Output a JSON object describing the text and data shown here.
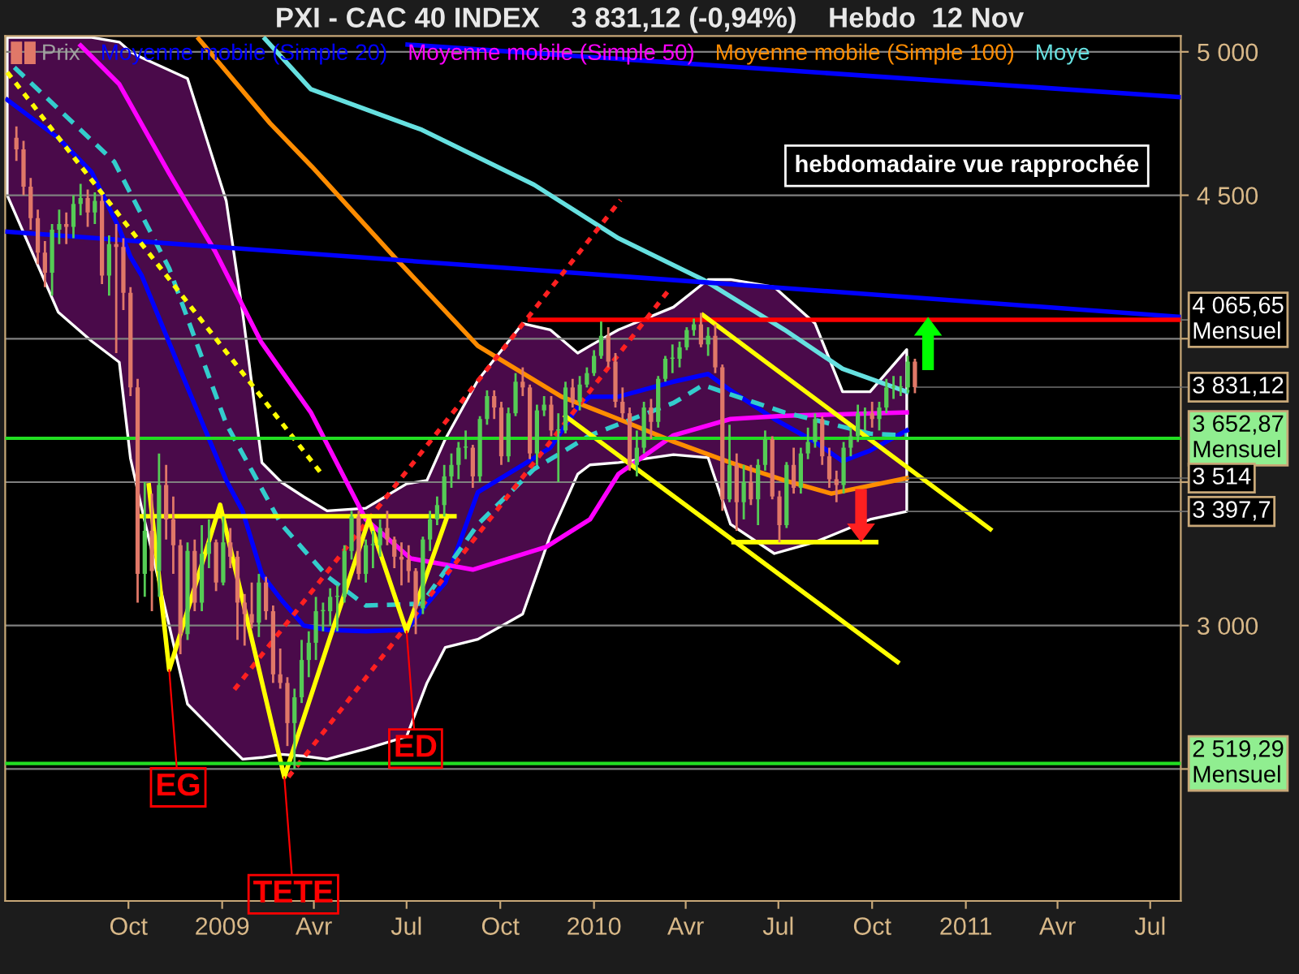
{
  "chart_data": {
    "type": "candlestick",
    "title": "PXI - CAC 40 INDEX    3 831,12 (-0,94%)    Hebdo  12 Nov",
    "xlim": [
      "2008-06-02",
      "2011-07-31"
    ],
    "xticks": [
      {
        "value": "2008-10-01",
        "label": "Oct"
      },
      {
        "value": "2009-01-01",
        "label": "2009"
      },
      {
        "value": "2009-04-01",
        "label": "Avr"
      },
      {
        "value": "2009-07-01",
        "label": "Jul"
      },
      {
        "value": "2009-10-01",
        "label": "Oct"
      },
      {
        "value": "2010-01-01",
        "label": "2010"
      },
      {
        "value": "2010-04-01",
        "label": "Avr"
      },
      {
        "value": "2010-07-01",
        "label": "Jul"
      },
      {
        "value": "2010-10-01",
        "label": "Oct"
      },
      {
        "value": "2011-01-01",
        "label": "2011"
      },
      {
        "value": "2011-04-01",
        "label": "Avr"
      },
      {
        "value": "2011-07-01",
        "label": "Jul"
      }
    ],
    "ylim": [
      2040,
      5055
    ],
    "yticks": [
      {
        "value": 2500,
        "label": null
      },
      {
        "value": 3000,
        "label": "3 000"
      },
      {
        "value": 3500,
        "label": null
      },
      {
        "value": 4000,
        "label": null
      },
      {
        "value": 4500,
        "label": "4 500"
      },
      {
        "value": 5000,
        "label": "5 000"
      }
    ],
    "grid": "y",
    "legend": "top left",
    "series": [
      {
        "type": "line",
        "name": "Moyenne mobile (Simple 20)",
        "color": "#0000ff",
        "x": [
          "2008-06-04",
          "2008-07-24",
          "2008-08-26",
          "2008-09-22",
          "2008-10-03",
          "2008-10-14",
          "2008-11-28",
          "2009-01-05",
          "2009-01-21",
          "2009-02-09",
          "2009-02-28",
          "2009-03-22",
          "2009-04-14",
          "2009-05-22",
          "2009-07-01",
          "2009-07-21",
          "2009-08-08",
          "2009-09-09",
          "2009-10-23",
          "2009-11-19",
          "2009-12-16",
          "2009-12-28",
          "2010-01-25",
          "2010-03-20",
          "2010-04-23",
          "2010-05-15",
          "2010-06-27",
          "2010-08-06",
          "2010-09-02",
          "2010-09-29",
          "2010-11-04"
        ],
        "values": [
          4833,
          4700,
          4580,
          4384,
          4285,
          4220,
          3830,
          3506,
          3400,
          3178,
          3090,
          3000,
          2985,
          2980,
          2985,
          3076,
          3150,
          3465,
          3560,
          3620,
          3760,
          3798,
          3798,
          3850,
          3877,
          3820,
          3720,
          3640,
          3573,
          3610,
          3680
        ],
        "upper": [
          5050,
          5050,
          5050,
          5034,
          5000,
          4980,
          4907,
          4480,
          4093,
          3568,
          3500,
          3449,
          3400,
          3409,
          3494,
          3506,
          3650,
          3855,
          4053,
          4031,
          3950,
          3975,
          4031,
          4110,
          4206,
          4206,
          4180,
          4053,
          3815,
          3815,
          3962
        ],
        "lower": [
          4500,
          4093,
          3991,
          3918,
          3582,
          3409,
          2726,
          2590,
          2534,
          2540,
          2551,
          2545,
          2534,
          2570,
          2613,
          2800,
          2924,
          2952,
          3040,
          3313,
          3528,
          3560,
          3568,
          3596,
          3585,
          3353,
          3251,
          3291,
          3330,
          3370,
          3397.7
        ]
      },
      {
        "type": "line",
        "name": "Moyenne mobile (Simple 50)",
        "color": "#ff00ff",
        "x": [
          "2008-08-15",
          "2008-09-22",
          "2008-11-10",
          "2008-12-25",
          "2009-02-08",
          "2009-03-29",
          "2009-05-22",
          "2009-07-05",
          "2009-09-04",
          "2009-11-15",
          "2009-12-28",
          "2010-01-25",
          "2010-03-20",
          "2010-05-15",
          "2010-07-07",
          "2010-11-04"
        ],
        "values": [
          5022,
          4887,
          4576,
          4305,
          3990,
          3743,
          3370,
          3234,
          3195,
          3274,
          3370,
          3528,
          3663,
          3720,
          3731,
          3743
        ]
      },
      {
        "type": "line",
        "name": "Moyenne mobile (Simple 100)",
        "color": "#ff8c00",
        "x": [
          "2008-12-09",
          "2009-02-17",
          "2009-03-30",
          "2009-06-19",
          "2009-09-09",
          "2009-11-30",
          "2010-01-25",
          "2010-03-20",
          "2010-05-15",
          "2010-07-07",
          "2010-08-22",
          "2010-11-04"
        ],
        "values": [
          5045,
          4751,
          4600,
          4285,
          3975,
          3798,
          3720,
          3641,
          3568,
          3506,
          3460,
          3514
        ]
      },
      {
        "type": "line",
        "name": "Moye",
        "color": "#66e0e0",
        "x": [
          "2009-02-12",
          "2009-03-29",
          "2009-07-16",
          "2009-11-03",
          "2010-01-25",
          "2010-04-18",
          "2010-07-07",
          "2010-09-02",
          "2010-11-04"
        ],
        "values": [
          5045,
          4870,
          4728,
          4537,
          4350,
          4206,
          4031,
          3895,
          3815
        ]
      },
      {
        "type": "line",
        "color": "#33cccc",
        "line_style": "dashed",
        "x": [
          "2008-06-11",
          "2008-09-17",
          "2008-11-10",
          "2009-01-05",
          "2009-02-28",
          "2009-04-14",
          "2009-05-22",
          "2009-07-16",
          "2009-09-09",
          "2009-11-03",
          "2009-12-28",
          "2010-03-20",
          "2010-04-18",
          "2010-07-07",
          "2010-09-29",
          "2010-11-04"
        ],
        "values": [
          4946,
          4617,
          4245,
          3703,
          3353,
          3172,
          3070,
          3076,
          3353,
          3545,
          3663,
          3776,
          3838,
          3743,
          3669,
          3663
        ]
      },
      {
        "type": "line",
        "color": "#0000ff",
        "x": [
          "2008-06-04",
          "2011-07-31"
        ],
        "values": [
          4373,
          4076
        ]
      },
      {
        "type": "line",
        "color": "#0000ff",
        "x": [
          "2009-07-02",
          "2011-07-31"
        ],
        "values": [
          5025,
          4842
        ]
      },
      {
        "type": "line",
        "color": "#ff0000",
        "x": [
          "2009-10-30",
          "2011-07-31"
        ],
        "values": [
          4065.65,
          4065.65
        ]
      },
      {
        "type": "line",
        "color": "#ffff00",
        "line_style": "dotted",
        "x": [
          "2008-06-04",
          "2009-04-09"
        ],
        "values": [
          4929,
          3527
        ]
      },
      {
        "type": "line",
        "color": "#ff2020",
        "line_style": "dotted",
        "x": [
          "2009-01-13",
          "2010-01-27"
        ],
        "values": [
          2777,
          4483
        ]
      },
      {
        "type": "line",
        "color": "#ff2020",
        "line_style": "dotted",
        "x": [
          "2009-03-07",
          "2010-03-16"
        ],
        "values": [
          2472,
          4172
        ]
      },
      {
        "type": "line",
        "color": "#ffff00",
        "x": [
          "2010-04-18",
          "2011-01-25"
        ],
        "values": [
          4082,
          3336
        ]
      },
      {
        "type": "line",
        "color": "#ffff00",
        "x": [
          "2009-12-04",
          "2010-10-26"
        ],
        "values": [
          3730,
          2873
        ]
      },
      {
        "type": "line",
        "color": "#ffff00",
        "x": [
          "2008-10-21",
          "2008-11-10",
          "2008-12-30",
          "2009-03-03",
          "2009-05-25",
          "2009-07-01",
          "2009-08-10"
        ],
        "values": [
          3489,
          2845,
          3421,
          2472,
          3370,
          2980,
          3381
        ]
      },
      {
        "type": "line",
        "color": "#ffff00",
        "x": [
          "2008-10-13",
          "2009-08-17"
        ],
        "values": [
          3381,
          3381
        ]
      },
      {
        "type": "line",
        "color": "#ffff00",
        "x": [
          "2010-05-18",
          "2010-10-05"
        ],
        "values": [
          3291,
          3291
        ]
      },
      {
        "name": "Prix",
        "color": "#a0a0a0",
        "colors": [
          "#e07868",
          "#e07868",
          "#e07868",
          "#e07868",
          "#e07868",
          "#55cc55",
          "#55cc55",
          "#e07868",
          "#55cc55",
          "#55cc55",
          "#e07868",
          "#55cc55",
          "#e07868",
          "#55cc55",
          "#e07868",
          "#e07868",
          "#e07868",
          "#e07868",
          "#55cc55",
          "#e07868",
          "#55cc55",
          "#e07868",
          "#e07868",
          "#e07868",
          "#55cc55",
          "#e07868",
          "#55cc55",
          "#55cc55",
          "#e07868",
          "#55cc55",
          "#e07868",
          "#e07868",
          "#e07868",
          "#e07868",
          "#55cc55",
          "#e07868",
          "#e07868",
          "#e07868",
          "#e07868",
          "#55cc55",
          "#55cc55",
          "#55cc55",
          "#55cc55",
          "#55cc55",
          "#55cc55",
          "#55cc55",
          "#55cc55",
          "#55cc55",
          "#e07868",
          "#55cc55",
          "#55cc55",
          "#55cc55",
          "#e07868",
          "#e07868",
          "#e07868",
          "#e07868",
          "#e07868",
          "#55cc55",
          "#55cc55",
          "#55cc55",
          "#55cc55",
          "#55cc55",
          "#55cc55",
          "#55cc55",
          "#e07868",
          "#55cc55",
          "#55cc55",
          "#e07868",
          "#e07868",
          "#55cc55",
          "#55cc55",
          "#e07868",
          "#e07868",
          "#55cc55",
          "#55cc55",
          "#e07868",
          "#55cc55",
          "#55cc55",
          "#e07868",
          "#55cc55",
          "#55cc55",
          "#55cc55",
          "#55cc55",
          "#e07868",
          "#e07868",
          "#e07868",
          "#e07868",
          "#55cc55",
          "#55cc55",
          "#e07868",
          "#55cc55",
          "#55cc55",
          "#55cc55",
          "#55cc55",
          "#55cc55",
          "#55cc55",
          "#e07868",
          "#55cc55",
          "#e07868",
          "#e07868",
          "#55cc55",
          "#e07868",
          "#55cc55",
          "#e07868",
          "#55cc55",
          "#55cc55",
          "#e07868",
          "#e07868",
          "#55cc55",
          "#e07868",
          "#55cc55",
          "#55cc55",
          "#55cc55",
          "#e07868",
          "#e07868",
          "#e07868",
          "#55cc55",
          "#55cc55",
          "#55cc55",
          "#55cc55",
          "#e07868",
          "#55cc55",
          "#55cc55",
          "#55cc55",
          "#55cc55",
          "#55cc55",
          "#e07868"
        ],
        "x": [
          "2008-06-13",
          "2008-06-20",
          "2008-06-27",
          "2008-07-04",
          "2008-07-11",
          "2008-07-18",
          "2008-07-25",
          "2008-08-01",
          "2008-08-08",
          "2008-08-15",
          "2008-08-22",
          "2008-08-29",
          "2008-09-05",
          "2008-09-12",
          "2008-09-19",
          "2008-09-26",
          "2008-10-03",
          "2008-10-10",
          "2008-10-17",
          "2008-10-24",
          "2008-10-31",
          "2008-11-07",
          "2008-11-14",
          "2008-11-21",
          "2008-11-28",
          "2008-12-05",
          "2008-12-12",
          "2008-12-19",
          "2008-12-26",
          "2009-01-02",
          "2009-01-09",
          "2009-01-16",
          "2009-01-23",
          "2009-01-30",
          "2009-02-06",
          "2009-02-13",
          "2009-02-20",
          "2009-02-27",
          "2009-03-06",
          "2009-03-13",
          "2009-03-20",
          "2009-03-27",
          "2009-04-03",
          "2009-04-10",
          "2009-04-17",
          "2009-04-24",
          "2009-05-01",
          "2009-05-08",
          "2009-05-15",
          "2009-05-22",
          "2009-05-29",
          "2009-06-05",
          "2009-06-12",
          "2009-06-19",
          "2009-06-26",
          "2009-07-03",
          "2009-07-10",
          "2009-07-17",
          "2009-07-24",
          "2009-07-31",
          "2009-08-07",
          "2009-08-14",
          "2009-08-21",
          "2009-08-28",
          "2009-09-04",
          "2009-09-11",
          "2009-09-18",
          "2009-09-25",
          "2009-10-02",
          "2009-10-09",
          "2009-10-16",
          "2009-10-23",
          "2009-10-30",
          "2009-11-06",
          "2009-11-13",
          "2009-11-20",
          "2009-11-27",
          "2009-12-04",
          "2009-12-11",
          "2009-12-18",
          "2009-12-25",
          "2010-01-01",
          "2010-01-08",
          "2010-01-15",
          "2010-01-22",
          "2010-01-29",
          "2010-02-05",
          "2010-02-12",
          "2010-02-19",
          "2010-02-26",
          "2010-03-05",
          "2010-03-12",
          "2010-03-19",
          "2010-03-26",
          "2010-04-02",
          "2010-04-09",
          "2010-04-16",
          "2010-04-23",
          "2010-04-30",
          "2010-05-07",
          "2010-05-14",
          "2010-05-21",
          "2010-05-28",
          "2010-06-04",
          "2010-06-11",
          "2010-06-18",
          "2010-06-25",
          "2010-07-02",
          "2010-07-09",
          "2010-07-16",
          "2010-07-23",
          "2010-07-30",
          "2010-08-06",
          "2010-08-13",
          "2010-08-20",
          "2010-08-27",
          "2010-09-03",
          "2010-09-10",
          "2010-09-17",
          "2010-09-24",
          "2010-10-01",
          "2010-10-08",
          "2010-10-15",
          "2010-10-22",
          "2010-10-29",
          "2010-11-05",
          "2010-11-12"
        ],
        "ohlc": [
          [
            4700,
            4740,
            4620,
            4660
          ],
          [
            4660,
            4690,
            4500,
            4530
          ],
          [
            4530,
            4560,
            4380,
            4420
          ],
          [
            4420,
            4450,
            4260,
            4300
          ],
          [
            4300,
            4340,
            4180,
            4230
          ],
          [
            4230,
            4400,
            4150,
            4380
          ],
          [
            4380,
            4450,
            4330,
            4400
          ],
          [
            4400,
            4440,
            4330,
            4390
          ],
          [
            4390,
            4500,
            4350,
            4470
          ],
          [
            4470,
            4540,
            4430,
            4490
          ],
          [
            4490,
            4520,
            4390,
            4440
          ],
          [
            4440,
            4510,
            4400,
            4480
          ],
          [
            4480,
            4500,
            4190,
            4220
          ],
          [
            4220,
            4360,
            4150,
            4330
          ],
          [
            4330,
            4400,
            3950,
            4320
          ],
          [
            4320,
            4350,
            4100,
            4160
          ],
          [
            4160,
            4180,
            3800,
            3830
          ],
          [
            3830,
            3860,
            3080,
            3180
          ],
          [
            3180,
            3500,
            3100,
            3330
          ],
          [
            3330,
            3460,
            3050,
            3190
          ],
          [
            3190,
            3600,
            3100,
            3490
          ],
          [
            3490,
            3560,
            3300,
            3370
          ],
          [
            3370,
            3450,
            3180,
            3280
          ],
          [
            3280,
            3300,
            2900,
            2970
          ],
          [
            2970,
            3290,
            2950,
            3260
          ],
          [
            3260,
            3300,
            3050,
            3080
          ],
          [
            3080,
            3350,
            3050,
            3250
          ],
          [
            3250,
            3370,
            3200,
            3290
          ],
          [
            3290,
            3300,
            3120,
            3150
          ],
          [
            3150,
            3380,
            3140,
            3290
          ],
          [
            3290,
            3340,
            3200,
            3240
          ],
          [
            3240,
            3260,
            2950,
            3080
          ],
          [
            3080,
            3110,
            2930,
            3040
          ],
          [
            3040,
            3150,
            2990,
            3010
          ],
          [
            3010,
            3180,
            2960,
            3150
          ],
          [
            3150,
            3170,
            3020,
            3050
          ],
          [
            3050,
            3070,
            2800,
            2830
          ],
          [
            2830,
            2920,
            2780,
            2800
          ],
          [
            2800,
            2820,
            2580,
            2660
          ],
          [
            2660,
            2780,
            2500,
            2750
          ],
          [
            2750,
            2950,
            2730,
            2880
          ],
          [
            2880,
            2980,
            2820,
            2940
          ],
          [
            2940,
            3100,
            2880,
            3050
          ],
          [
            3050,
            3080,
            2980,
            3050
          ],
          [
            3050,
            3130,
            3000,
            3100
          ],
          [
            3100,
            3140,
            2980,
            3100
          ],
          [
            3100,
            3280,
            3080,
            3260
          ],
          [
            3260,
            3400,
            3230,
            3380
          ],
          [
            3380,
            3400,
            3160,
            3180
          ],
          [
            3180,
            3300,
            3150,
            3280
          ],
          [
            3280,
            3330,
            3200,
            3280
          ],
          [
            3280,
            3370,
            3240,
            3340
          ],
          [
            3340,
            3400,
            3280,
            3300
          ],
          [
            3300,
            3310,
            3200,
            3240
          ],
          [
            3240,
            3290,
            3140,
            3230
          ],
          [
            3230,
            3280,
            3150,
            3190
          ],
          [
            3190,
            3200,
            2970,
            3060
          ],
          [
            3060,
            3310,
            3040,
            3300
          ],
          [
            3300,
            3400,
            3260,
            3370
          ],
          [
            3370,
            3450,
            3350,
            3420
          ],
          [
            3420,
            3560,
            3380,
            3520
          ],
          [
            3520,
            3600,
            3480,
            3560
          ],
          [
            3560,
            3640,
            3510,
            3620
          ],
          [
            3620,
            3680,
            3580,
            3620
          ],
          [
            3620,
            3630,
            3480,
            3520
          ],
          [
            3520,
            3730,
            3500,
            3720
          ],
          [
            3720,
            3820,
            3700,
            3800
          ],
          [
            3800,
            3820,
            3720,
            3760
          ],
          [
            3760,
            3780,
            3560,
            3590
          ],
          [
            3590,
            3760,
            3570,
            3740
          ],
          [
            3740,
            3880,
            3730,
            3850
          ],
          [
            3850,
            3900,
            3800,
            3830
          ],
          [
            3830,
            3840,
            3580,
            3600
          ],
          [
            3600,
            3770,
            3560,
            3750
          ],
          [
            3750,
            3800,
            3730,
            3770
          ],
          [
            3770,
            3800,
            3660,
            3680
          ],
          [
            3680,
            3740,
            3500,
            3680
          ],
          [
            3680,
            3850,
            3670,
            3830
          ],
          [
            3830,
            3860,
            3760,
            3780
          ],
          [
            3780,
            3870,
            3750,
            3840
          ],
          [
            3840,
            3900,
            3830,
            3880
          ],
          [
            3880,
            3960,
            3870,
            3940
          ],
          [
            3940,
            4060,
            3930,
            4010
          ],
          [
            4010,
            4040,
            3900,
            3920
          ],
          [
            3920,
            3950,
            3760,
            3780
          ],
          [
            3780,
            3830,
            3720,
            3740
          ],
          [
            3740,
            3760,
            3540,
            3560
          ],
          [
            3560,
            3680,
            3520,
            3620
          ],
          [
            3620,
            3780,
            3600,
            3760
          ],
          [
            3760,
            3790,
            3650,
            3710
          ],
          [
            3710,
            3870,
            3690,
            3860
          ],
          [
            3860,
            3940,
            3850,
            3930
          ],
          [
            3930,
            3980,
            3880,
            3930
          ],
          [
            3930,
            3990,
            3900,
            3970
          ],
          [
            3970,
            4040,
            3960,
            4030
          ],
          [
            4030,
            4070,
            4010,
            4050
          ],
          [
            4050,
            4090,
            3970,
            3980
          ],
          [
            3980,
            4040,
            3940,
            4010
          ],
          [
            4010,
            4050,
            3880,
            3900
          ],
          [
            3900,
            3910,
            3400,
            3440
          ],
          [
            3440,
            3700,
            3430,
            3560
          ],
          [
            3560,
            3600,
            3330,
            3430
          ],
          [
            3430,
            3560,
            3370,
            3500
          ],
          [
            3500,
            3560,
            3420,
            3440
          ],
          [
            3440,
            3580,
            3350,
            3560
          ],
          [
            3560,
            3680,
            3540,
            3650
          ],
          [
            3650,
            3660,
            3440,
            3450
          ],
          [
            3450,
            3470,
            3290,
            3350
          ],
          [
            3350,
            3570,
            3340,
            3560
          ],
          [
            3560,
            3620,
            3460,
            3480
          ],
          [
            3480,
            3620,
            3460,
            3600
          ],
          [
            3600,
            3690,
            3580,
            3640
          ],
          [
            3640,
            3740,
            3620,
            3720
          ],
          [
            3720,
            3730,
            3560,
            3590
          ],
          [
            3590,
            3620,
            3480,
            3510
          ],
          [
            3510,
            3540,
            3430,
            3490
          ],
          [
            3490,
            3640,
            3460,
            3620
          ],
          [
            3620,
            3690,
            3590,
            3660
          ],
          [
            3660,
            3770,
            3640,
            3740
          ],
          [
            3740,
            3760,
            3680,
            3740
          ],
          [
            3740,
            3780,
            3690,
            3720
          ],
          [
            3720,
            3780,
            3680,
            3760
          ],
          [
            3760,
            3860,
            3740,
            3830
          ],
          [
            3830,
            3870,
            3790,
            3830
          ],
          [
            3830,
            3870,
            3800,
            3830
          ],
          [
            3830,
            3940,
            3810,
            3920
          ],
          [
            3920,
            3930,
            3810,
            3831.12
          ]
        ]
      }
    ],
    "ref_lines": [
      {
        "axis": "y",
        "value": 3652.87,
        "label": "3 652,87\nMensuel",
        "color": "#22dd22"
      },
      {
        "axis": "y",
        "value": 2519.29,
        "label": "2 519,29\nMensuel",
        "color": "#22dd22"
      }
    ],
    "annotations": [
      {
        "text": "EG",
        "x": "2008-11-10",
        "y": 2845
      },
      {
        "text": "TETE",
        "x": "2009-03-03",
        "y": 2472
      },
      {
        "text": "ED",
        "x": "2009-07-01",
        "y": 2980
      },
      "hebdomadaire vue rapprochée",
      {
        "text": "4 065,65\nMensuel",
        "x": "2011-07-31",
        "y": 4065.65
      },
      {
        "text": "3 831,12",
        "x": "2010-11-12",
        "y": 3831.12
      },
      {
        "text": "3 514",
        "x": "2010-11-04",
        "y": 3514
      },
      {
        "text": "3 397,7",
        "x": "2010-11-04",
        "y": 3397.7
      }
    ]
  }
}
